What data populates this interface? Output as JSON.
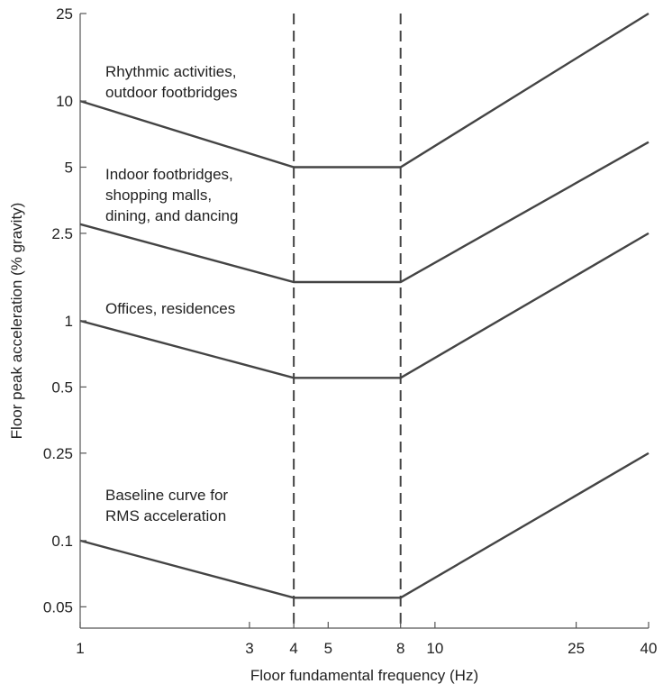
{
  "chart_data": {
    "type": "line",
    "xlabel": "Floor fundamental frequency (Hz)",
    "ylabel": "Floor peak acceleration (% gravity)",
    "xscale": "log",
    "yscale": "log",
    "xlim": [
      1,
      40
    ],
    "ylim": [
      0.04,
      25
    ],
    "grid": false,
    "xticks": [
      1,
      3,
      4,
      5,
      8,
      10,
      25,
      40
    ],
    "xtick_labels": [
      "1",
      "3",
      "4",
      "5",
      "8",
      "10",
      "25",
      "40"
    ],
    "yticks": [
      0.05,
      0.1,
      0.25,
      0.5,
      1,
      2.5,
      5,
      10,
      25
    ],
    "ytick_labels": [
      "0.05",
      "0.1",
      "0.25",
      "0.5",
      "1",
      "2.5",
      "5",
      "10",
      "25"
    ],
    "reference_lines": [
      {
        "axis": "x",
        "value": 4,
        "style": "dashed"
      },
      {
        "axis": "x",
        "value": 8,
        "style": "dashed"
      }
    ],
    "series": [
      {
        "x": [
          1,
          4,
          8,
          40
        ],
        "y": [
          10,
          5,
          5,
          25
        ]
      },
      {
        "x": [
          1,
          4,
          8,
          40
        ],
        "y": [
          2.75,
          1.5,
          1.5,
          6.5
        ]
      },
      {
        "x": [
          1,
          4,
          8,
          40
        ],
        "y": [
          1,
          0.55,
          0.55,
          2.5
        ]
      },
      {
        "x": [
          1,
          4,
          8,
          40
        ],
        "y": [
          0.1,
          0.055,
          0.055,
          0.25
        ]
      }
    ],
    "annotations": [
      {
        "lines": [
          "Rhythmic activities,",
          "outdoor footbridges"
        ]
      },
      {
        "lines": [
          "Indoor footbridges,",
          "shopping malls,",
          "dining, and dancing"
        ]
      },
      {
        "lines": [
          "Offices, residences"
        ]
      },
      {
        "lines": [
          "Baseline curve for",
          "RMS acceleration"
        ]
      }
    ]
  }
}
